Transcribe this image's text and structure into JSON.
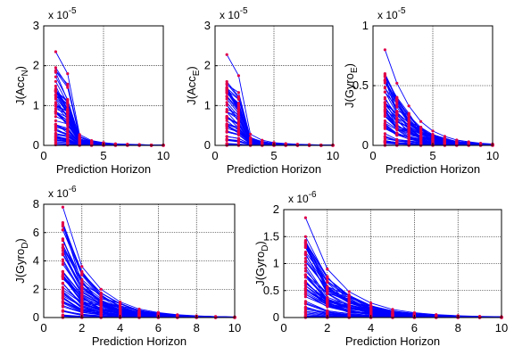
{
  "figure": {
    "colors": {
      "line": "#0000ff",
      "marker": "#e0004a",
      "grid": "#000000",
      "axes": "#000000",
      "background": "#ffffff"
    }
  },
  "chart_data": [
    {
      "type": "line",
      "title": "",
      "xlabel": "Prediction Horizon",
      "ylabel_main": "J(Acc",
      "ylabel_sub": "N",
      "ylabel_close": ")",
      "exponent_label": "x 10",
      "exponent": "-5",
      "xlim": [
        0,
        10
      ],
      "ylim": [
        0,
        3
      ],
      "xticks": [
        "0",
        "5",
        "10"
      ],
      "yticks": [
        "0",
        "1",
        "2",
        "3"
      ],
      "grid": true,
      "num_curves": 60,
      "x": [
        1,
        2,
        3,
        4,
        5,
        6,
        7,
        8,
        9,
        10
      ],
      "envelope_start": [
        2.35,
        1.8,
        0.27,
        0.12,
        0.07,
        0.04,
        0.03,
        0.02,
        0.01,
        0.01
      ],
      "series": [
        {
          "values": [
            2.35,
            1.8,
            0.27,
            0.12,
            0.07,
            0.04,
            0.03,
            0.02,
            0.01,
            0.01
          ]
        },
        {
          "values": [
            1.95,
            1.45,
            0.22,
            0.1,
            0.06,
            0.035,
            0.025,
            0.015,
            0.01,
            0.005
          ]
        }
      ]
    },
    {
      "type": "line",
      "title": "",
      "xlabel": "Prediction Horizon",
      "ylabel_main": "J(Acc",
      "ylabel_sub": "E",
      "ylabel_close": ")",
      "exponent_label": "x 10",
      "exponent": "-5",
      "xlim": [
        0,
        10
      ],
      "ylim": [
        0,
        3
      ],
      "xticks": [
        "0",
        "5",
        "10"
      ],
      "yticks": [
        "0",
        "1",
        "2",
        "3"
      ],
      "grid": true,
      "num_curves": 60,
      "x": [
        1,
        2,
        3,
        4,
        5,
        6,
        7,
        8,
        9,
        10
      ],
      "series": [
        {
          "values": [
            2.28,
            1.75,
            0.28,
            0.13,
            0.07,
            0.045,
            0.03,
            0.02,
            0.01,
            0.01
          ]
        },
        {
          "values": [
            1.6,
            1.2,
            0.2,
            0.09,
            0.05,
            0.03,
            0.02,
            0.01,
            0.01,
            0.005
          ]
        }
      ]
    },
    {
      "type": "line",
      "title": "",
      "xlabel": "Prediction Horizon",
      "ylabel_main": "J(Gyro",
      "ylabel_sub": "E",
      "ylabel_close": ")",
      "exponent_label": "x 10",
      "exponent": "-5",
      "xlim": [
        0,
        10
      ],
      "ylim": [
        0,
        1
      ],
      "xticks": [
        "0",
        "5",
        "10"
      ],
      "yticks": [
        "0",
        "0.5",
        "1"
      ],
      "grid": true,
      "num_curves": 60,
      "x": [
        1,
        2,
        3,
        4,
        5,
        6,
        7,
        8,
        9,
        10
      ],
      "series": [
        {
          "values": [
            0.8,
            0.52,
            0.33,
            0.2,
            0.12,
            0.075,
            0.045,
            0.03,
            0.018,
            0.012
          ]
        },
        {
          "values": [
            0.6,
            0.4,
            0.25,
            0.15,
            0.09,
            0.055,
            0.035,
            0.02,
            0.013,
            0.008
          ]
        }
      ]
    },
    {
      "type": "line",
      "title": "",
      "xlabel": "Prediction Horizon",
      "ylabel_main": "J(Gyro",
      "ylabel_sub": "D",
      "ylabel_close": ")",
      "exponent_label": "x 10",
      "exponent": "-6",
      "xlim": [
        0,
        10
      ],
      "ylim": [
        0,
        8
      ],
      "xticks": [
        "0",
        "2",
        "4",
        "6",
        "8",
        "10"
      ],
      "yticks": [
        "0",
        "2",
        "4",
        "6",
        "8"
      ],
      "grid": true,
      "num_curves": 60,
      "x": [
        1,
        2,
        3,
        4,
        5,
        6,
        7,
        8,
        9,
        10
      ],
      "series": [
        {
          "values": [
            7.8,
            3.6,
            2.0,
            1.1,
            0.6,
            0.35,
            0.2,
            0.12,
            0.07,
            0.04
          ]
        },
        {
          "values": [
            6.7,
            3.0,
            1.7,
            0.95,
            0.5,
            0.3,
            0.17,
            0.1,
            0.06,
            0.03
          ]
        }
      ]
    },
    {
      "type": "line",
      "title": "",
      "xlabel": "Prediction Horizon",
      "ylabel_main": "J(Gyro",
      "ylabel_sub": "D",
      "ylabel_close": ")",
      "exponent_label": "x 10",
      "exponent": "-6",
      "xlim": [
        0,
        10
      ],
      "ylim": [
        0,
        2
      ],
      "xticks": [
        "0",
        "2",
        "4",
        "6",
        "8",
        "10"
      ],
      "yticks": [
        "0",
        "0.5",
        "1",
        "1.5",
        "2"
      ],
      "grid": true,
      "num_curves": 60,
      "x": [
        1,
        2,
        3,
        4,
        5,
        6,
        7,
        8,
        9,
        10
      ],
      "series": [
        {
          "values": [
            1.85,
            0.9,
            0.48,
            0.27,
            0.15,
            0.09,
            0.055,
            0.035,
            0.022,
            0.015
          ]
        },
        {
          "values": [
            1.5,
            0.72,
            0.38,
            0.21,
            0.12,
            0.07,
            0.045,
            0.028,
            0.018,
            0.012
          ]
        }
      ]
    }
  ]
}
